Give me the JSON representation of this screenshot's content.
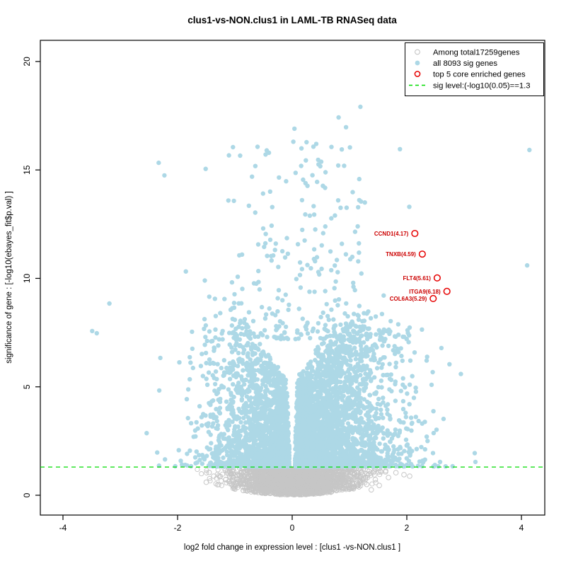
{
  "chart_data": {
    "type": "scatter",
    "subtype": "volcano-plot",
    "title": "clus1-vs-NON.clus1 in LAML-TB RNASeq data",
    "xlabel": "log2 fold change in expression level : [clus1 -vs-NON.clus1 ]",
    "ylabel": "significance of gene : [-log10(ebayes_fit$p.val) ]",
    "xlim": [
      -4.4,
      4.4
    ],
    "ylim": [
      -0.5,
      21
    ],
    "grid": false,
    "x_ticks": [
      {
        "value": -4,
        "label": "-4"
      },
      {
        "value": -2,
        "label": "-2"
      },
      {
        "value": 0,
        "label": "0"
      },
      {
        "value": 2,
        "label": "2"
      },
      {
        "value": 4,
        "label": "4"
      }
    ],
    "y_ticks": [
      {
        "value": 0,
        "label": "0"
      },
      {
        "value": 5,
        "label": "5"
      },
      {
        "value": 10,
        "label": "10"
      },
      {
        "value": 15,
        "label": "15"
      },
      {
        "value": 20,
        "label": "20"
      }
    ],
    "sig_line": {
      "value": 1.3,
      "color": "#00DD00",
      "style": "dashed"
    },
    "colors": {
      "nonsig": "#C6C6C6",
      "sig": "#ADD8E6",
      "enriched": "#E60000",
      "sig_level": "#00DD00",
      "gene_label_text": "#CC0000",
      "axis": "#000000"
    },
    "legend": {
      "position": "top-right",
      "items": [
        {
          "label": "Among total17259genes",
          "symbol": "open-circle",
          "color": "#C0C0C0"
        },
        {
          "label": "all 8093 sig genes",
          "symbol": "filled-circle",
          "color": "#ADD8E6"
        },
        {
          "label": "top 5 core enriched genes",
          "symbol": "open-circle",
          "color": "#E60000"
        },
        {
          "label": "sig level:(-log10(0.05)==1.3",
          "symbol": "dashed-line",
          "color": "#00DD00"
        }
      ]
    },
    "labeled_genes": [
      {
        "name": "CCND1",
        "score": 4.17,
        "label": "CCND1(4.17)",
        "x": 2.14,
        "y": 12.07
      },
      {
        "name": "TNXB",
        "score": 4.59,
        "label": "TNXB(4.59)",
        "x": 2.27,
        "y": 11.12
      },
      {
        "name": "FLT4",
        "score": 5.61,
        "label": "FLT4(5.61)",
        "x": 2.53,
        "y": 10.02
      },
      {
        "name": "ITGA9",
        "score": 6.18,
        "label": "ITGA9(6.18)",
        "x": 2.7,
        "y": 9.4
      },
      {
        "name": "COL6A3",
        "score": 5.29,
        "label": "COL6A3(5.29)",
        "x": 2.46,
        "y": 9.07
      }
    ],
    "series": [
      {
        "name": "non-significant genes (of 17259 total)",
        "marker": "open-circle",
        "color": "#C6C6C6",
        "outliers": [
          [
            -1.37,
            0.88
          ],
          [
            -1.16,
            0.72
          ],
          [
            -1.5,
            0.6
          ],
          [
            0.79,
            0.39
          ],
          [
            0.99,
            0.65
          ],
          [
            1.07,
            0.3
          ],
          [
            1.3,
            0.5
          ],
          [
            1.45,
            0.72
          ],
          [
            1.63,
            1.08
          ],
          [
            1.81,
            1.04
          ],
          [
            1.68,
            0.82
          ],
          [
            1.52,
            0.45
          ],
          [
            1.95,
            0.95
          ],
          [
            2.05,
            0.88
          ],
          [
            1.38,
            0.25
          ],
          [
            -1.45,
            1.05
          ]
        ]
      },
      {
        "name": "significant genes",
        "count": 8093,
        "marker": "filled-circle",
        "color": "#ADD8E6",
        "outliers": [
          [
            1.19,
            17.91
          ],
          [
            0.81,
            17.42
          ],
          [
            0.94,
            16.97
          ],
          [
            0.04,
            16.9
          ],
          [
            0.02,
            16.3
          ],
          [
            0.25,
            16.28
          ],
          [
            0.42,
            16.2
          ],
          [
            1.88,
            15.96
          ],
          [
            4.14,
            15.92
          ],
          [
            -2.33,
            15.33
          ],
          [
            0.49,
            15.17
          ],
          [
            -1.51,
            15.05
          ],
          [
            -2.23,
            14.75
          ],
          [
            1.17,
            14.58
          ],
          [
            0.19,
            14.55
          ],
          [
            4.1,
            10.6
          ],
          [
            -3.49,
            7.57
          ],
          [
            -3.41,
            7.47
          ],
          [
            -3.19,
            8.84
          ]
        ]
      }
    ],
    "cloud_model": {
      "seed": 42,
      "wedge": {
        "base": 0.02,
        "slope": 0.0135,
        "y_cap": 7,
        "y_min_gray": 0.25
      },
      "gray": {
        "count": 2600,
        "x_mean": 0.05,
        "x_sigma": 0.52,
        "x_max": 2.15,
        "y_top": 1.28,
        "bottom_curve": 0.26
      },
      "blue": {
        "count": 5200,
        "right_fraction": 0.62,
        "sigma_right": 0.85,
        "sigma_left": 0.68,
        "x_offset": 0.05,
        "x_max": 4.2,
        "y_base": 1.33,
        "bulk_fraction": 0.95,
        "bulk_height": 6.7,
        "high_base": 7.2,
        "high_span": 9.0
      }
    }
  }
}
